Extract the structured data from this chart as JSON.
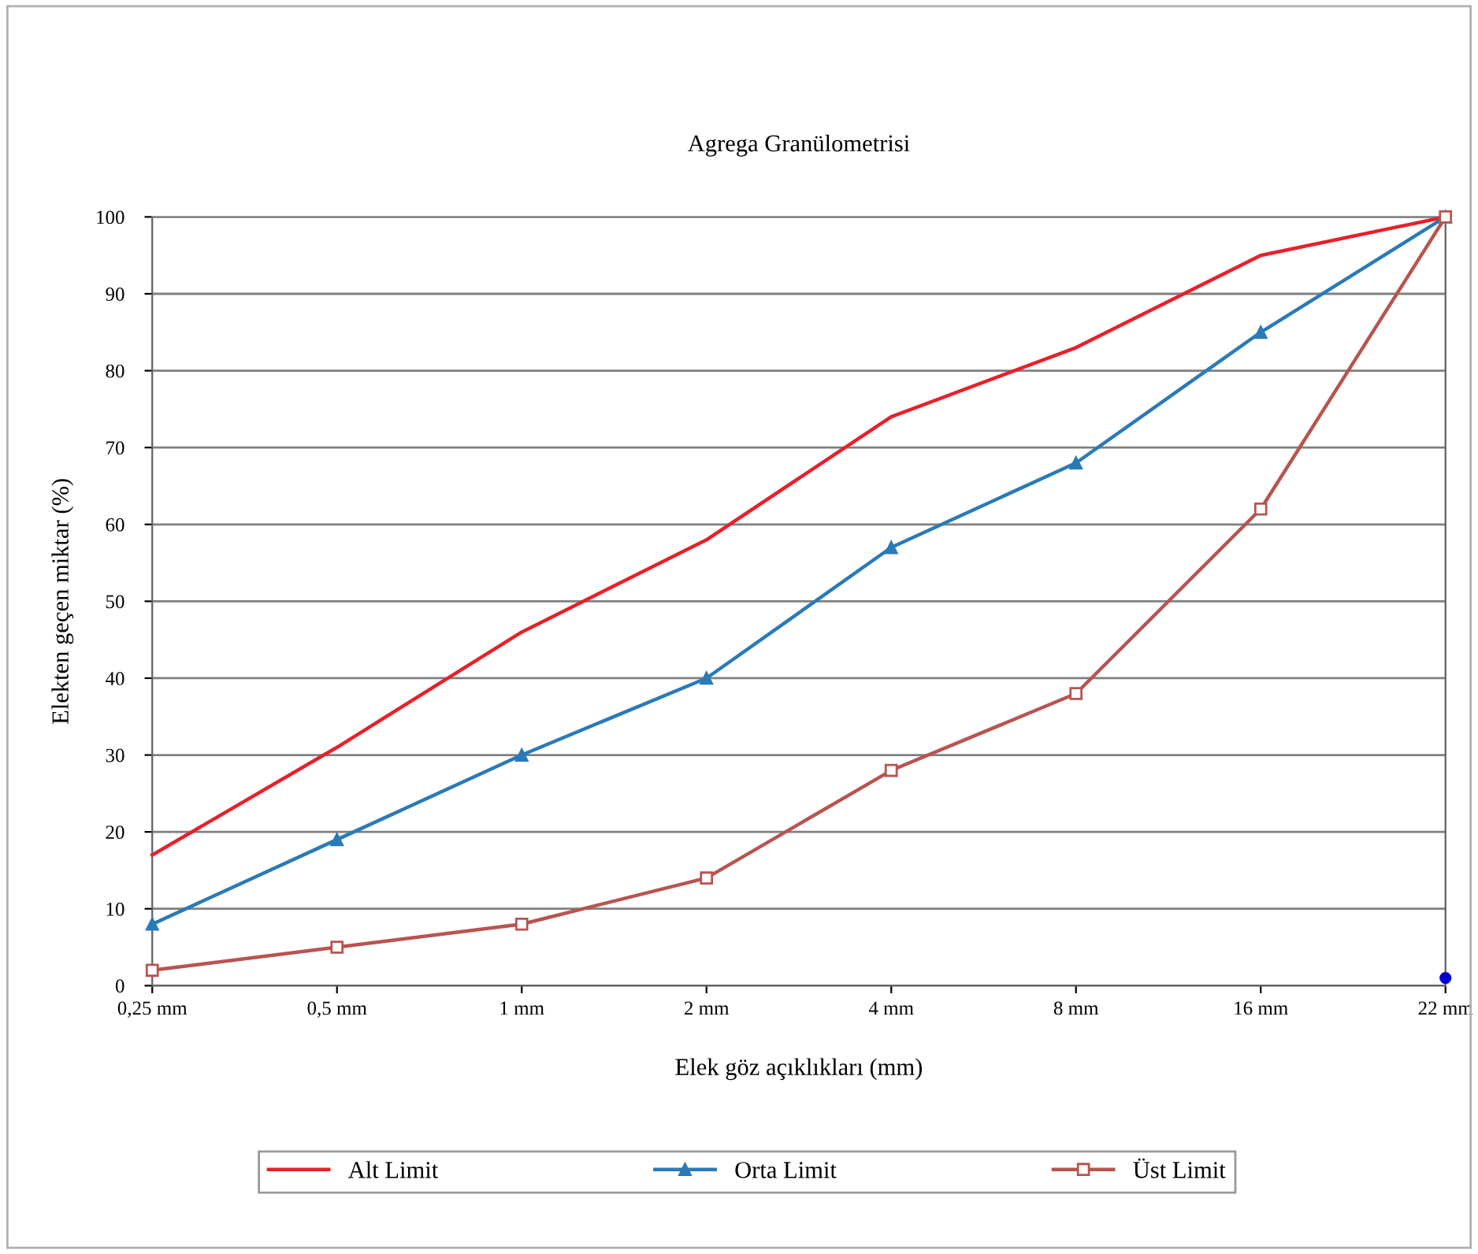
{
  "chart_data": {
    "type": "line",
    "title": "Agrega Granülometrisi",
    "xlabel": "Elek göz açıklıkları (mm)",
    "ylabel": "Elekten geçen miktar (%)",
    "categories": [
      "0,25 mm",
      "0,5 mm",
      "1 mm",
      "2 mm",
      "4 mm",
      "8 mm",
      "16 mm",
      "22 mm"
    ],
    "series": [
      {
        "name": "Alt Limit",
        "color": "#e8202a",
        "marker": "none",
        "values": [
          17,
          31,
          46,
          58,
          74,
          83,
          95,
          100
        ]
      },
      {
        "name": "Orta Limit",
        "color": "#2a7ab8",
        "marker": "triangle",
        "values": [
          8,
          19,
          30,
          40,
          57,
          68,
          85,
          100
        ]
      },
      {
        "name": "Üst Limit",
        "color": "#b85450",
        "marker": "square",
        "values": [
          2,
          5,
          8,
          14,
          28,
          38,
          62,
          100
        ]
      },
      {
        "type": "scatter",
        "color": "#0000cc",
        "marker": "circle",
        "values": [
          null,
          null,
          null,
          null,
          null,
          null,
          null,
          1
        ]
      }
    ],
    "ylim": [
      0,
      100
    ],
    "yticks": [
      0,
      10,
      20,
      30,
      40,
      50,
      60,
      70,
      80,
      90,
      100
    ],
    "grid": "y",
    "legend": "bottom"
  }
}
